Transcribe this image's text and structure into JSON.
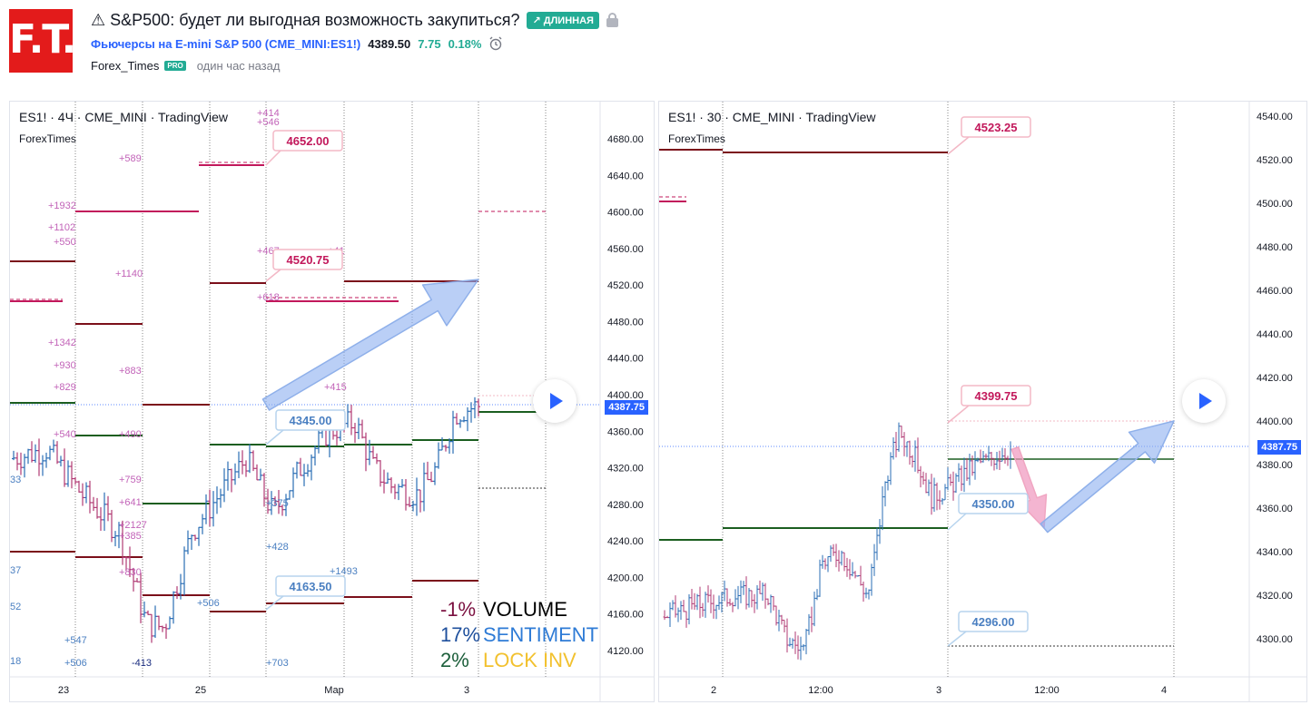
{
  "header": {
    "logo_text": "F.T.",
    "title": "⚠ S&P500: будет ли выгодная возможность закупиться?",
    "badge": "↗ ДЛИННАЯ",
    "symbol_name": "Фьючерсы на E-mini S&P 500 (CME_MINI:ES1!)",
    "price": "4389.50",
    "change": "7.75",
    "change_pct": "0.18%",
    "author": "Forex_Times",
    "pro_badge": "PRO",
    "time": "один час назад"
  },
  "colors": {
    "accent": "#2962ff",
    "long": "#22ab94",
    "logo_bg": "#e31b1b",
    "pink": "#c2185b",
    "label_blue": "#4a7fc1",
    "dark_red": "#7b0f1a",
    "dark_green": "#1b5e20"
  },
  "chart_left": {
    "title": "ES1! · 4Ч · CME_MINI · TradingView",
    "subtitle": "ForexTimes",
    "price_tag": "4387.75",
    "y_ticks": [
      "4680.00",
      "4640.00",
      "4600.00",
      "4560.00",
      "4520.00",
      "4480.00",
      "4440.00",
      "4400.00",
      "4360.00",
      "4320.00",
      "4280.00",
      "4240.00",
      "4200.00",
      "4160.00",
      "4120.00"
    ],
    "x_ticks": [
      "23",
      "25",
      "Мар",
      "3"
    ],
    "callouts": [
      {
        "text": "4652.00",
        "color": "pink"
      },
      {
        "text": "4520.75",
        "color": "pink"
      },
      {
        "text": "4345.00",
        "color": "blue"
      },
      {
        "text": "4163.50",
        "color": "blue"
      }
    ],
    "pink_labels": [
      "+589",
      "+1932",
      "+1102",
      "+550",
      "+1140",
      "+1342",
      "+930",
      "+829",
      "+883",
      "+540",
      "+490",
      "+759",
      "+641",
      "+2127",
      "+385",
      "+830",
      "+414",
      "+546",
      "+467",
      "+618",
      "+415",
      "+41"
    ],
    "blue_labels": [
      "33",
      "37",
      "52",
      "18",
      "+547",
      "+506",
      "-413",
      "+506",
      "+375",
      "+428",
      "+703",
      "+1493"
    ],
    "legend": [
      {
        "pct": "-1%",
        "label": "VOLUME",
        "pct_color": "#7b1040",
        "label_color": "#000000"
      },
      {
        "pct": "17%",
        "label": "SENTIMENT",
        "pct_color": "#1e4f9c",
        "label_color": "#2e7bd6"
      },
      {
        "pct": "2%",
        "label": "LOCK INV",
        "pct_color": "#1b5e3a",
        "label_color": "#f2c12e"
      }
    ]
  },
  "chart_right": {
    "title": "ES1! · 30 · CME_MINI · TradingView",
    "subtitle": "ForexTimes",
    "price_tag": "4387.75",
    "y_ticks": [
      "4540.00",
      "4520.00",
      "4500.00",
      "4480.00",
      "4460.00",
      "4440.00",
      "4420.00",
      "4400.00",
      "4380.00",
      "4360.00",
      "4340.00",
      "4320.00",
      "4300.00"
    ],
    "x_ticks": [
      "2",
      "12:00",
      "3",
      "12:00",
      "4"
    ],
    "callouts": [
      {
        "text": "4523.25",
        "color": "pink"
      },
      {
        "text": "4399.75",
        "color": "pink"
      },
      {
        "text": "4350.00",
        "color": "blue"
      },
      {
        "text": "4296.00",
        "color": "blue"
      }
    ]
  }
}
